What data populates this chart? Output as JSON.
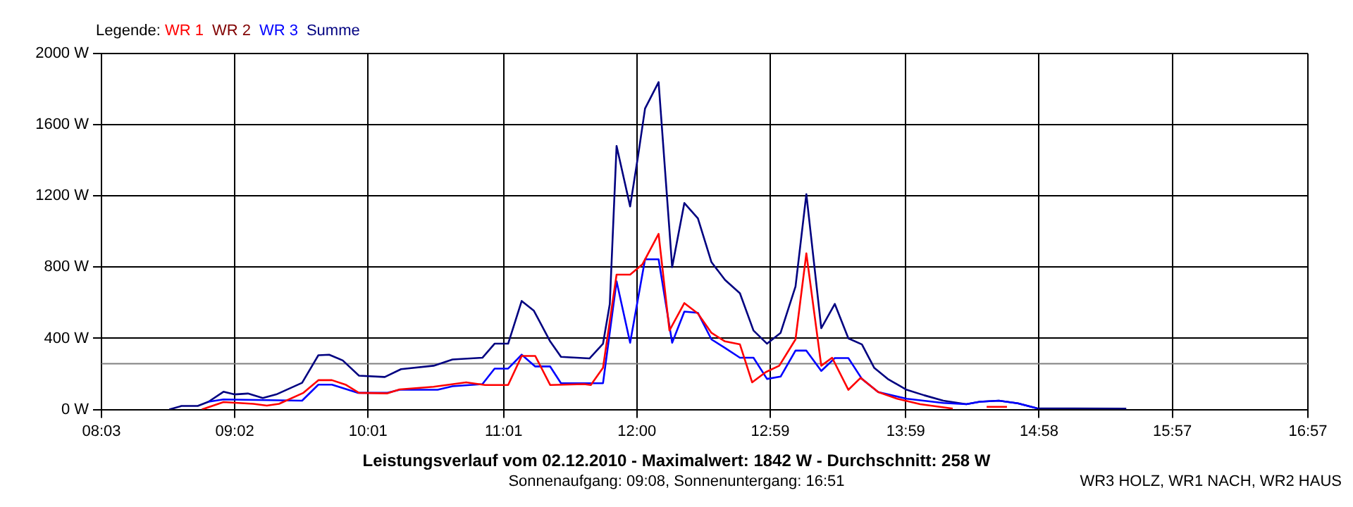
{
  "chart_data": {
    "type": "line",
    "title": "Leistungsverlauf vom 02.12.2010 - Maximalwert: 1842 W - Durchschnitt: 258 W",
    "subtitle": "Sonnenaufgang: 09:08, Sonnenuntergang: 16:51",
    "annotations": [
      "WR3 HOLZ, WR1 NACH, WR2 HAUS"
    ],
    "legend_title": "Legende:",
    "legend": "top left",
    "grid": true,
    "marker": "none",
    "line_style": "solid",
    "xlim": [
      8.05,
      16.95
    ],
    "xticks": [
      {
        "value": 8.05,
        "label": "08:03"
      },
      {
        "value": 9.0333,
        "label": "09:02"
      },
      {
        "value": 10.0167,
        "label": "10:01"
      },
      {
        "value": 11.0167,
        "label": "11:01"
      },
      {
        "value": 12,
        "label": "12:00"
      },
      {
        "value": 12.9833,
        "label": "12:59"
      },
      {
        "value": 13.9833,
        "label": "13:59"
      },
      {
        "value": 14.9667,
        "label": "14:58"
      },
      {
        "value": 15.95,
        "label": "15:57"
      },
      {
        "value": 16.95,
        "label": "16:57"
      }
    ],
    "ylim": [
      0,
      2000
    ],
    "yticks": [
      {
        "value": 0,
        "label": "0 W"
      },
      {
        "value": 400,
        "label": "400 W"
      },
      {
        "value": 800,
        "label": "800 W"
      },
      {
        "value": 1200,
        "label": "1200 W"
      },
      {
        "value": 1600,
        "label": "1600 W"
      },
      {
        "value": 2000,
        "label": "2000 W"
      }
    ],
    "ref_lines": [
      {
        "axis": "y",
        "value": 258,
        "label": null,
        "color": "#808080"
      }
    ],
    "series": [
      {
        "name": "WR 1",
        "color": "#ff0000",
        "x": [
          8.79,
          8.95,
          9.17,
          9.27,
          9.36,
          9.54,
          9.65,
          9.75,
          9.85,
          9.95,
          10.16,
          10.25,
          10.5,
          10.74,
          10.88,
          11.05,
          11.15,
          11.25,
          11.36,
          11.61,
          11.66,
          11.75,
          11.85,
          11.95,
          12.04,
          12.16,
          12.24,
          12.35,
          12.45,
          12.55,
          12.65,
          12.76,
          12.85,
          12.95,
          13.05,
          13.17,
          13.25,
          13.36,
          13.44,
          13.56,
          13.65,
          13.78,
          13.92,
          14.09,
          14.33,
          14.45,
          14.58,
          14.73
        ],
        "values": [
          0,
          42,
          32,
          22,
          32,
          94,
          165,
          165,
          140,
          94,
          91,
          113,
          128,
          153,
          138,
          138,
          301,
          301,
          138,
          143,
          138,
          235,
          758,
          758,
          815,
          987,
          444,
          598,
          539,
          431,
          383,
          366,
          153,
          210,
          246,
          394,
          877,
          246,
          291,
          111,
          178,
          98,
          61,
          30,
          5,
          null,
          15,
          15
        ]
      },
      {
        "name": "WR 2",
        "color": "#800000"
      },
      {
        "name": "WR 3",
        "color": "#0000ff",
        "x": [
          8.84,
          8.95,
          9.53,
          9.65,
          9.75,
          9.94,
          10.16,
          10.25,
          10.53,
          10.64,
          10.86,
          10.95,
          11.05,
          11.15,
          11.25,
          11.36,
          11.44,
          11.75,
          11.85,
          11.95,
          12.06,
          12.16,
          12.26,
          12.35,
          12.45,
          12.55,
          12.65,
          12.76,
          12.86,
          12.96,
          13.06,
          13.17,
          13.25,
          13.36,
          13.46,
          13.56,
          13.66,
          13.78,
          13.99,
          14.26,
          14.43,
          14.53,
          14.67,
          14.81,
          14.95
        ],
        "values": [
          44,
          57,
          50,
          140,
          140,
          94,
          94,
          111,
          111,
          131,
          143,
          230,
          230,
          308,
          242,
          242,
          148,
          148,
          720,
          375,
          844,
          844,
          375,
          550,
          543,
          394,
          346,
          291,
          291,
          172,
          185,
          331,
          331,
          217,
          289,
          289,
          172,
          98,
          61,
          37,
          30,
          44,
          50,
          35,
          7
        ]
      },
      {
        "name": "Summe",
        "color": "#000080",
        "x": [
          8.55,
          8.64,
          8.76,
          8.84,
          8.95,
          9.03,
          9.13,
          9.24,
          9.34,
          9.53,
          9.65,
          9.73,
          9.83,
          9.95,
          10.14,
          10.26,
          10.5,
          10.64,
          10.86,
          10.95,
          11.05,
          11.15,
          11.24,
          11.36,
          11.44,
          11.65,
          11.75,
          11.8,
          11.85,
          11.95,
          12.01,
          12.06,
          12.16,
          12.26,
          12.35,
          12.45,
          12.55,
          12.65,
          12.76,
          12.86,
          12.96,
          13.06,
          13.17,
          13.25,
          13.36,
          13.46,
          13.56,
          13.66,
          13.75,
          13.85,
          13.99,
          14.12,
          14.26,
          14.43,
          14.53,
          14.67,
          14.81,
          14.95,
          15.61
        ],
        "values": [
          0,
          20,
          20,
          44,
          100,
          85,
          90,
          65,
          85,
          150,
          305,
          308,
          276,
          190,
          183,
          227,
          246,
          281,
          291,
          370,
          370,
          610,
          555,
          383,
          296,
          287,
          370,
          593,
          1481,
          1141,
          1432,
          1691,
          1839,
          800,
          1160,
          1074,
          828,
          728,
          653,
          444,
          370,
          431,
          691,
          1210,
          457,
          593,
          400,
          366,
          235,
          172,
          111,
          80,
          50,
          30,
          44,
          50,
          35,
          7,
          5
        ]
      }
    ]
  }
}
